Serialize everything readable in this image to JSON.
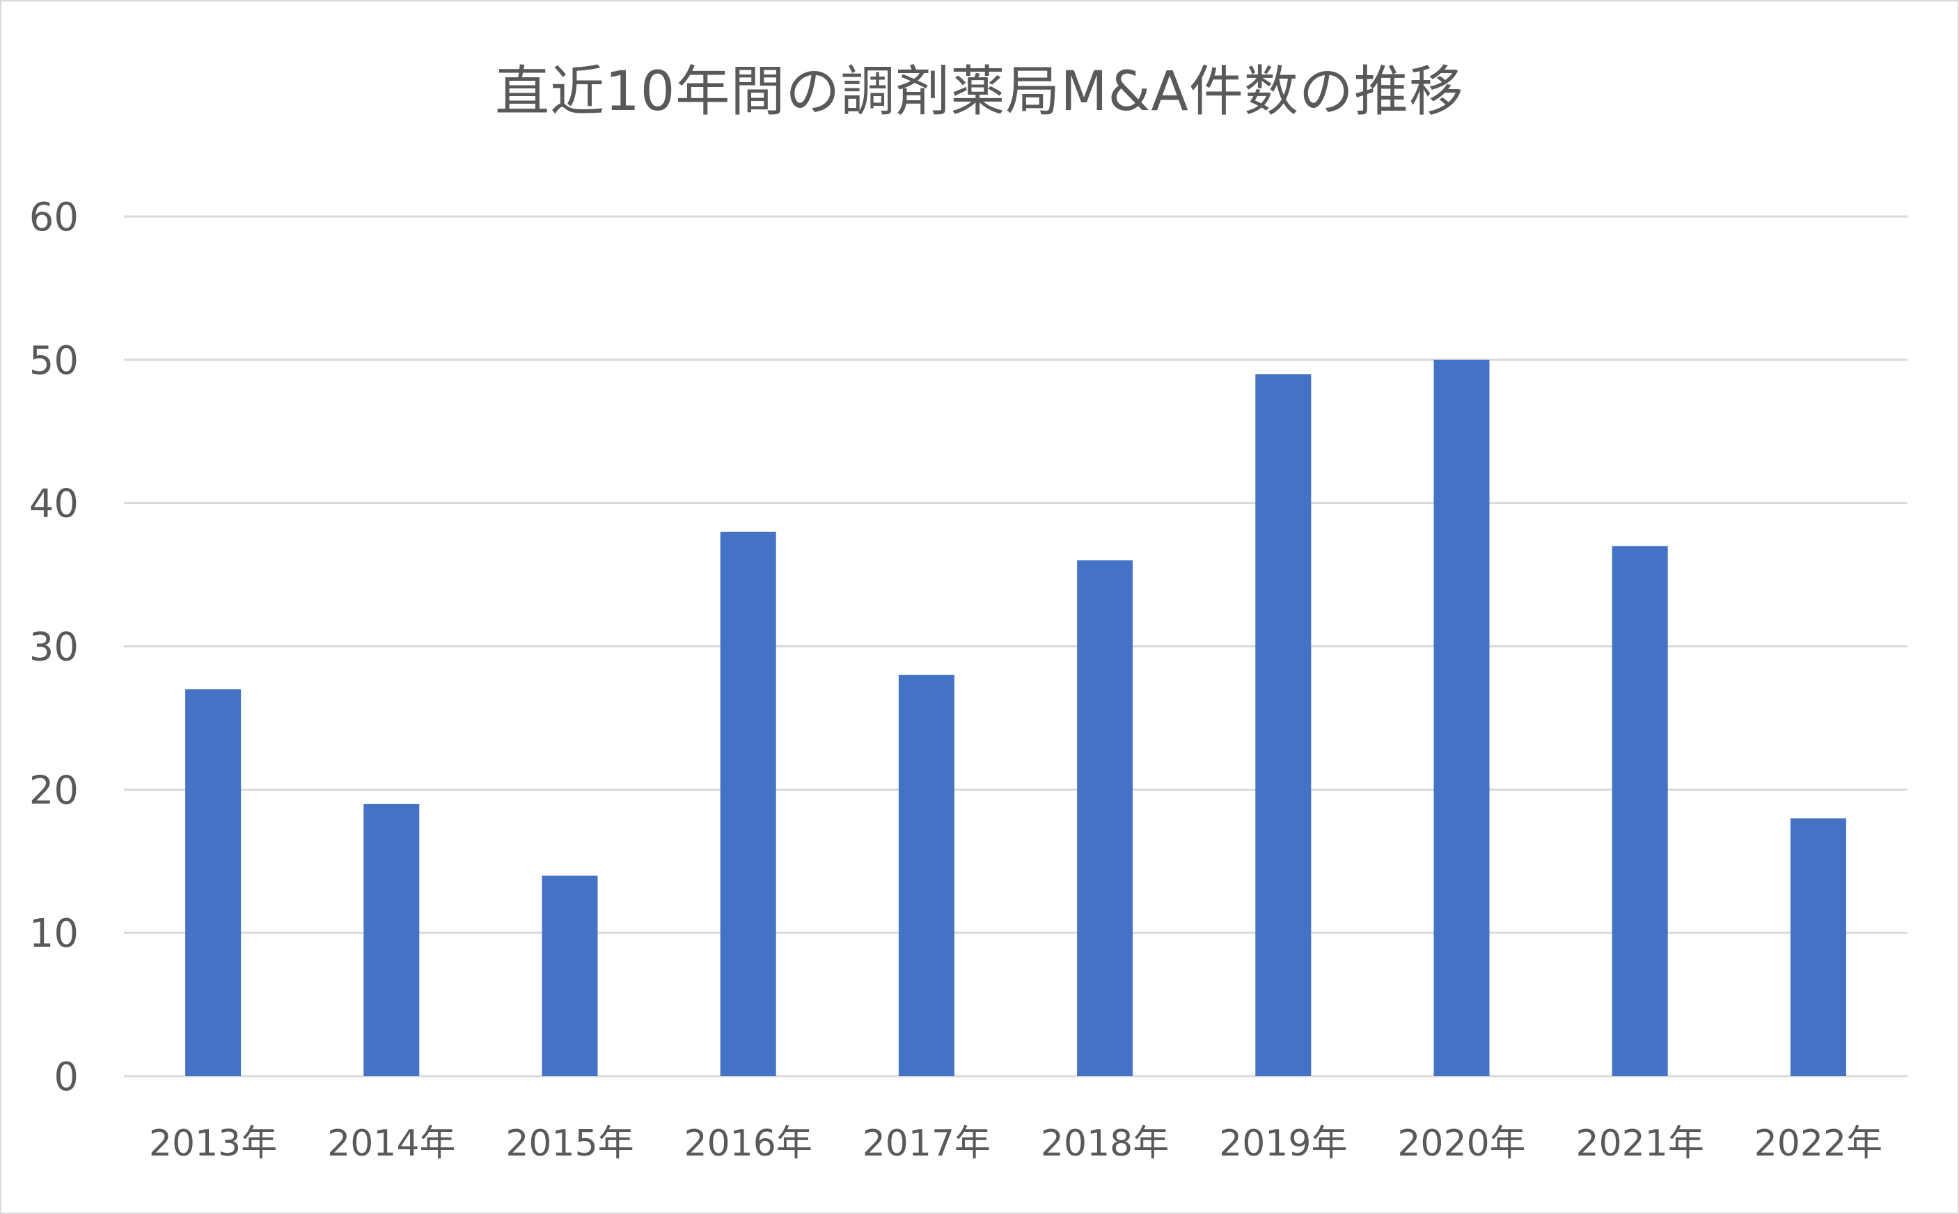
{
  "chart_data": {
    "type": "bar",
    "title": "直近10年間の調剤薬局M&A件数の推移",
    "categories": [
      "2013年",
      "2014年",
      "2015年",
      "2016年",
      "2017年",
      "2018年",
      "2019年",
      "2020年",
      "2021年",
      "2022年"
    ],
    "values": [
      27,
      19,
      14,
      38,
      28,
      36,
      49,
      50,
      37,
      18
    ],
    "ylim": [
      0,
      60
    ],
    "yticks": [
      0,
      10,
      20,
      30,
      40,
      50,
      60
    ],
    "xlabel": "",
    "ylabel": "",
    "grid": true,
    "legend": "none",
    "colors": {
      "bar": "#4472c4",
      "grid": "#d9d9d9",
      "text": "#595959",
      "border": "#d9d9d9"
    }
  }
}
